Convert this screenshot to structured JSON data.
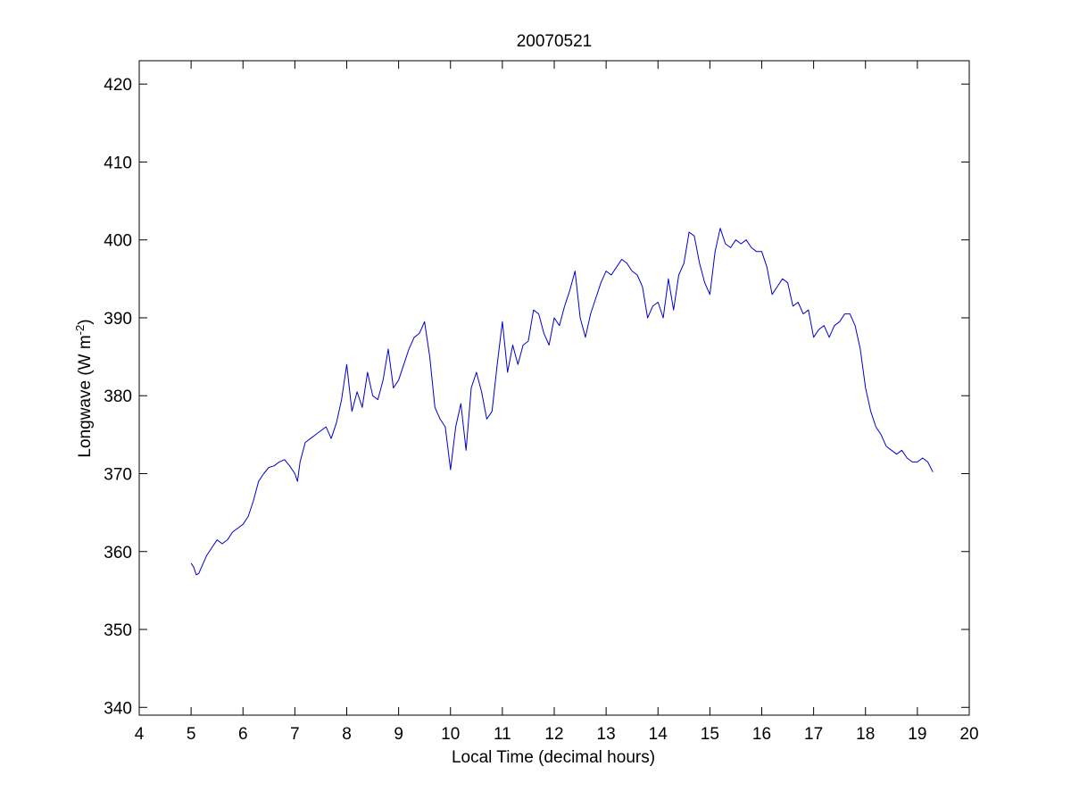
{
  "chart_data": {
    "type": "line",
    "title": "20070521",
    "xlabel": "Local Time (decimal hours)",
    "ylabel": {
      "main": "Longwave (W m",
      "superscript": "-2",
      "close": ")"
    },
    "xlim": [
      4,
      20
    ],
    "ylim": [
      339,
      423
    ],
    "xticks": [
      4,
      5,
      6,
      7,
      8,
      9,
      10,
      11,
      12,
      13,
      14,
      15,
      16,
      17,
      18,
      19,
      20
    ],
    "yticks": [
      340,
      350,
      360,
      370,
      380,
      390,
      400,
      410,
      420
    ],
    "grid": false,
    "series": [
      {
        "color": "#0000cc",
        "x": [
          5.0,
          5.05,
          5.1,
          5.15,
          5.2,
          5.3,
          5.4,
          5.5,
          5.6,
          5.7,
          5.8,
          5.9,
          6.0,
          6.1,
          6.2,
          6.3,
          6.4,
          6.5,
          6.6,
          6.7,
          6.8,
          6.9,
          7.0,
          7.05,
          7.1,
          7.2,
          7.3,
          7.4,
          7.5,
          7.6,
          7.7,
          7.8,
          7.9,
          8.0,
          8.1,
          8.2,
          8.3,
          8.4,
          8.5,
          8.6,
          8.7,
          8.8,
          8.9,
          9.0,
          9.1,
          9.2,
          9.3,
          9.4,
          9.5,
          9.6,
          9.7,
          9.8,
          9.9,
          10.0,
          10.1,
          10.2,
          10.3,
          10.4,
          10.5,
          10.6,
          10.7,
          10.8,
          10.9,
          11.0,
          11.1,
          11.2,
          11.3,
          11.4,
          11.5,
          11.6,
          11.7,
          11.8,
          11.9,
          12.0,
          12.1,
          12.2,
          12.3,
          12.4,
          12.5,
          12.6,
          12.7,
          12.8,
          12.9,
          13.0,
          13.1,
          13.2,
          13.3,
          13.4,
          13.5,
          13.6,
          13.7,
          13.8,
          13.9,
          14.0,
          14.1,
          14.2,
          14.3,
          14.4,
          14.5,
          14.6,
          14.7,
          14.8,
          14.9,
          15.0,
          15.1,
          15.2,
          15.3,
          15.4,
          15.5,
          15.6,
          15.7,
          15.8,
          15.9,
          16.0,
          16.1,
          16.2,
          16.3,
          16.4,
          16.5,
          16.6,
          16.7,
          16.8,
          16.9,
          17.0,
          17.1,
          17.2,
          17.3,
          17.4,
          17.5,
          17.6,
          17.7,
          17.8,
          17.9,
          18.0,
          18.1,
          18.2,
          18.3,
          18.4,
          18.5,
          18.6,
          18.7,
          18.8,
          18.9,
          19.0,
          19.1,
          19.2,
          19.3
        ],
        "y": [
          358.5,
          358.0,
          357.0,
          357.2,
          358.0,
          359.5,
          360.5,
          361.5,
          361.0,
          361.5,
          362.5,
          363.0,
          363.5,
          364.5,
          366.5,
          369.0,
          370.0,
          370.8,
          371.0,
          371.5,
          371.8,
          371.0,
          370.0,
          369.0,
          371.5,
          374.0,
          374.5,
          375.0,
          375.5,
          376.0,
          374.5,
          376.5,
          379.5,
          384.0,
          378.0,
          380.5,
          378.5,
          383.0,
          380.0,
          379.5,
          382.0,
          386.0,
          381.0,
          382.0,
          384.0,
          386.0,
          387.5,
          388.0,
          389.5,
          385.0,
          378.5,
          377.0,
          376.0,
          370.5,
          376.0,
          379.0,
          373.0,
          381.0,
          383.0,
          380.5,
          377.0,
          378.0,
          384.0,
          389.5,
          383.0,
          386.5,
          384.0,
          386.5,
          387.0,
          391.0,
          390.5,
          388.0,
          386.5,
          390.0,
          389.0,
          391.5,
          393.5,
          396.0,
          390.0,
          387.5,
          390.5,
          392.5,
          394.5,
          396.0,
          395.5,
          396.5,
          397.5,
          397.0,
          396.0,
          395.5,
          394.0,
          390.0,
          391.5,
          392.0,
          390.0,
          395.0,
          391.0,
          395.5,
          397.0,
          401.0,
          400.5,
          397.0,
          394.5,
          393.0,
          398.5,
          401.5,
          399.5,
          399.0,
          400.0,
          399.5,
          400.0,
          399.0,
          398.5,
          398.5,
          396.5,
          393.0,
          394.0,
          395.0,
          394.5,
          391.5,
          392.0,
          390.5,
          391.0,
          387.5,
          388.5,
          389.0,
          387.5,
          389.0,
          389.5,
          390.5,
          390.5,
          389.0,
          386.0,
          381.0,
          378.0,
          376.0,
          375.0,
          373.5,
          373.0,
          372.5,
          373.0,
          372.0,
          371.5,
          371.5,
          372.0,
          371.5,
          370.2
        ]
      }
    ]
  }
}
